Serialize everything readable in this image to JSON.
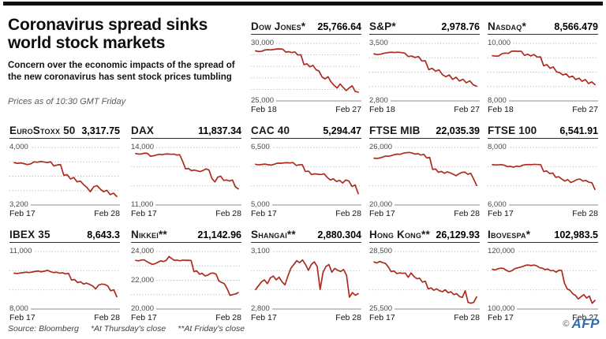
{
  "meta": {
    "title": "Coronavirus spread sinks world stock markets",
    "subtitle": "Concern over the economic impacts of the spread of the new coronavirus has sent stock prices tumbling",
    "dateline": "Prices as of 10:30 GMT Friday",
    "source": "Source: Bloomberg",
    "footnote_thursday": "*At Thursday's close",
    "footnote_friday": "**At Friday's close",
    "credit_symbol": "©",
    "credit": "AFP"
  },
  "colors": {
    "line_red": "#ad2c20",
    "grid_gray": "#a8a8a8",
    "axis_gray": "#8c8c8c",
    "top_bar": "#101010",
    "afp_blue": "#2f6cb4"
  },
  "chart_data": [
    {
      "type": "line",
      "name": "Dow Jones*",
      "value": "25,766.64",
      "ylim": [
        25000,
        30000
      ],
      "y_top_label": "30,000",
      "y_bottom_label": "25,000",
      "y_mid_label": null,
      "y_mid_value": null,
      "x_start": "Feb 18",
      "x_end": "Feb 27",
      "gridlines": 4,
      "series": [
        29350,
        29290,
        29310,
        29420,
        29450,
        29430,
        29470,
        29510,
        29520,
        29490,
        29240,
        29280,
        29200,
        29250,
        28990,
        29010,
        28160,
        28220,
        27960,
        28090,
        27710,
        27590,
        27080,
        26910,
        27100,
        26650,
        26350,
        26120,
        26470,
        26180,
        25900,
        26130,
        26310,
        25820,
        25766.64
      ]
    },
    {
      "type": "line",
      "name": "S&P*",
      "value": "2,978.76",
      "ylim": [
        2800,
        3500
      ],
      "y_top_label": "3,500",
      "y_bottom_label": "2,800",
      "y_mid_label": null,
      "y_mid_value": null,
      "x_start": "Feb 18",
      "x_end": "Feb 27",
      "gridlines": 3,
      "series": [
        3372,
        3363,
        3369,
        3381,
        3387,
        3392,
        3389,
        3393,
        3388,
        3381,
        3340,
        3346,
        3328,
        3340,
        3286,
        3288,
        3180,
        3196,
        3162,
        3178,
        3120,
        3094,
        3116,
        3062,
        3088,
        3042,
        3064,
        3020,
        3044,
        2996,
        2978.76
      ]
    },
    {
      "type": "line",
      "name": "Nasdaq*",
      "value": "8,566.479",
      "ylim": [
        8000,
        10000
      ],
      "y_top_label": "10,000",
      "y_bottom_label": "8,000",
      "y_mid_label": null,
      "y_mid_value": null,
      "x_start": "Feb 18",
      "x_end": "Feb 27",
      "gridlines": 3,
      "series": [
        9570,
        9556,
        9562,
        9642,
        9662,
        9652,
        9726,
        9732,
        9722,
        9727,
        9582,
        9622,
        9562,
        9612,
        9522,
        9532,
        9220,
        9262,
        9132,
        9182,
        9012,
        8982,
        8902,
        8942,
        8822,
        8862,
        8742,
        8792,
        8682,
        8742,
        8602,
        8662,
        8566.479
      ]
    },
    {
      "type": "line",
      "name": "EuroStoxx 50",
      "value": "3,317.75",
      "ylim": [
        3200,
        4000
      ],
      "y_top_label": "4,000",
      "y_bottom_label": "3,200",
      "y_mid_label": null,
      "y_mid_value": null,
      "x_start": "Feb 17",
      "x_end": "Feb 28",
      "gridlines": 3,
      "series": [
        3788,
        3778,
        3784,
        3774,
        3762,
        3772,
        3800,
        3794,
        3804,
        3798,
        3790,
        3800,
        3742,
        3756,
        3762,
        3612,
        3622,
        3562,
        3582,
        3522,
        3532,
        3482,
        3442,
        3384,
        3452,
        3470,
        3422,
        3384,
        3404,
        3344,
        3364,
        3317.75
      ]
    },
    {
      "type": "line",
      "name": "DAX",
      "value": "11,837.34",
      "ylim": [
        11000,
        14000
      ],
      "y_top_label": "14,000",
      "y_bottom_label": "11,000",
      "y_mid_label": null,
      "y_mid_value": null,
      "x_start": "Feb 17",
      "x_end": "Feb 28",
      "gridlines": 2,
      "series": [
        13680,
        13652,
        13662,
        13702,
        13692,
        13542,
        13562,
        13602,
        13642,
        13622,
        13652,
        13662,
        13642,
        13652,
        13602,
        13622,
        13282,
        12882,
        12902,
        12792,
        12822,
        12782,
        12742,
        12802,
        12882,
        12822,
        12382,
        12202,
        12452,
        12502,
        12282,
        12302,
        12252,
        12302,
        11950,
        11837.34
      ]
    },
    {
      "type": "line",
      "name": "CAC 40",
      "value": "5,294.47",
      "ylim": [
        5000,
        6500
      ],
      "y_top_label": "6,500",
      "y_bottom_label": "5,000",
      "y_mid_label": null,
      "y_mid_value": null,
      "x_start": "Feb 17",
      "x_end": "Feb 28",
      "gridlines": 2,
      "series": [
        6060,
        6046,
        6056,
        6066,
        6050,
        6040,
        6062,
        6092,
        6086,
        6096,
        6102,
        6096,
        6106,
        6032,
        6046,
        6052,
        5872,
        5882,
        5792,
        5812,
        5802,
        5792,
        5812,
        5722,
        5652,
        5682,
        5612,
        5642,
        5572,
        5652,
        5622,
        5482,
        5522,
        5294.47
      ]
    },
    {
      "type": "line",
      "name": "FTSE MIB",
      "value": "22,035.39",
      "ylim": [
        20000,
        26000
      ],
      "y_top_label": "26,000",
      "y_bottom_label": "20,000",
      "y_mid_label": null,
      "y_mid_value": null,
      "x_start": "Feb 17",
      "x_end": "Feb 28",
      "gridlines": 2,
      "series": [
        24880,
        24852,
        24902,
        25002,
        25102,
        25082,
        25152,
        25252,
        25302,
        25282,
        25402,
        25452,
        25482,
        25422,
        25302,
        25352,
        25202,
        25282,
        24902,
        24952,
        23702,
        23752,
        23402,
        23502,
        23302,
        23452,
        23352,
        23202,
        23052,
        23252,
        23402,
        23422,
        23202,
        23302,
        22702,
        22035.39
      ]
    },
    {
      "type": "line",
      "name": "FTSE 100",
      "value": "6,541.91",
      "ylim": [
        6000,
        8000
      ],
      "y_top_label": "8,000",
      "y_bottom_label": "6,000",
      "y_mid_label": null,
      "y_mid_value": null,
      "x_start": "Feb 17",
      "x_end": "Feb 28",
      "gridlines": 2,
      "series": [
        7400,
        7392,
        7396,
        7402,
        7382,
        7332,
        7342,
        7312,
        7352,
        7332,
        7382,
        7402,
        7406,
        7402,
        7412,
        7406,
        7402,
        7162,
        7182,
        7092,
        7112,
        6962,
        6982,
        6902,
        6832,
        6882,
        6782,
        6822,
        6882,
        6902,
        6832,
        6852,
        6792,
        6772,
        6541.91
      ]
    },
    {
      "type": "line",
      "name": "IBEX 35",
      "value": "8,643.3",
      "ylim": [
        8000,
        11000
      ],
      "y_top_label": "11,000",
      "y_bottom_label": "8,000",
      "y_mid_label": null,
      "y_mid_value": null,
      "x_start": "Feb 17",
      "x_end": "Feb 28",
      "gridlines": 2,
      "series": [
        9870,
        9852,
        9882,
        9902,
        9922,
        9902,
        9932,
        9962,
        9982,
        9942,
        9972,
        10022,
        9952,
        9902,
        9922,
        9872,
        9892,
        9832,
        9862,
        9512,
        9542,
        9382,
        9422,
        9302,
        9352,
        9282,
        9202,
        9052,
        9252,
        9302,
        9282,
        9202,
        8952,
        9002,
        8643.3
      ]
    },
    {
      "type": "line",
      "name": "Nikkei**",
      "value": "21,142.96",
      "ylim": [
        20000,
        24000
      ],
      "y_top_label": "24,000",
      "y_bottom_label": "20,000",
      "y_mid_label": "22,000",
      "y_mid_value": 22000,
      "x_start": "Feb 17",
      "x_end": "Feb 28",
      "gridlines": 3,
      "series": [
        23380,
        23352,
        23402,
        23422,
        23302,
        23202,
        23102,
        23152,
        23252,
        23352,
        23302,
        23382,
        23652,
        23502,
        23382,
        23402,
        23352,
        23402,
        23382,
        23392,
        23372,
        22602,
        22652,
        22422,
        22482,
        22302,
        22352,
        22482,
        22502,
        22422,
        21952,
        21852,
        21752,
        21402,
        20952,
        21002,
        21052,
        21142.96
      ]
    },
    {
      "type": "line",
      "name": "Shangai**",
      "value": "2,880.304",
      "ylim": [
        2800,
        3100
      ],
      "y_top_label": "3,100",
      "y_bottom_label": "2,800",
      "y_mid_label": null,
      "y_mid_value": null,
      "x_start": "Feb 17",
      "x_end": "Feb 28",
      "gridlines": 2,
      "series": [
        2902,
        2922,
        2942,
        2952,
        2932,
        2962,
        2972,
        2952,
        2966,
        2942,
        2926,
        2972,
        3012,
        3032,
        3052,
        3042,
        3056,
        3032,
        3002,
        3032,
        3046,
        3022,
        2902,
        2992,
        3022,
        3032,
        2992,
        3012,
        3002,
        2996,
        3006,
        2976,
        2862,
        2886,
        2872,
        2880.304
      ]
    },
    {
      "type": "line",
      "name": "Hong Kong**",
      "value": "26,129.93",
      "ylim": [
        25500,
        28500
      ],
      "y_top_label": "28,500",
      "y_bottom_label": "25,500",
      "y_mid_label": null,
      "y_mid_value": null,
      "x_start": "Feb 17",
      "x_end": "Feb 28",
      "gridlines": 2,
      "series": [
        27952,
        27902,
        27982,
        27922,
        27882,
        27702,
        27452,
        27482,
        27352,
        27382,
        27362,
        27372,
        27152,
        27382,
        27202,
        27082,
        27102,
        26902,
        26952,
        26552,
        26602,
        26482,
        26552,
        26452,
        26402,
        26502,
        26352,
        26402,
        26252,
        26302,
        26152,
        26102,
        26452,
        25852,
        25802,
        25852,
        26129.93
      ]
    },
    {
      "type": "line",
      "name": "Ibovespa*",
      "value": "102,983.5",
      "ylim": [
        100000,
        120000
      ],
      "y_top_label": "120,000",
      "y_bottom_label": "100,000",
      "y_mid_label": null,
      "y_mid_value": null,
      "x_start": "Feb 17",
      "x_end": "Feb 27",
      "gridlines": 2,
      "series": [
        113802,
        113602,
        114002,
        114202,
        114102,
        113502,
        113002,
        113302,
        114002,
        114302,
        114502,
        114802,
        115202,
        115302,
        115102,
        115302,
        115002,
        114402,
        114202,
        113702,
        113902,
        113302,
        113402,
        112802,
        113502,
        113402,
        109002,
        107002,
        106502,
        105302,
        104702,
        103502,
        104302,
        105002,
        103802,
        104502,
        102002,
        102983.5
      ]
    }
  ]
}
